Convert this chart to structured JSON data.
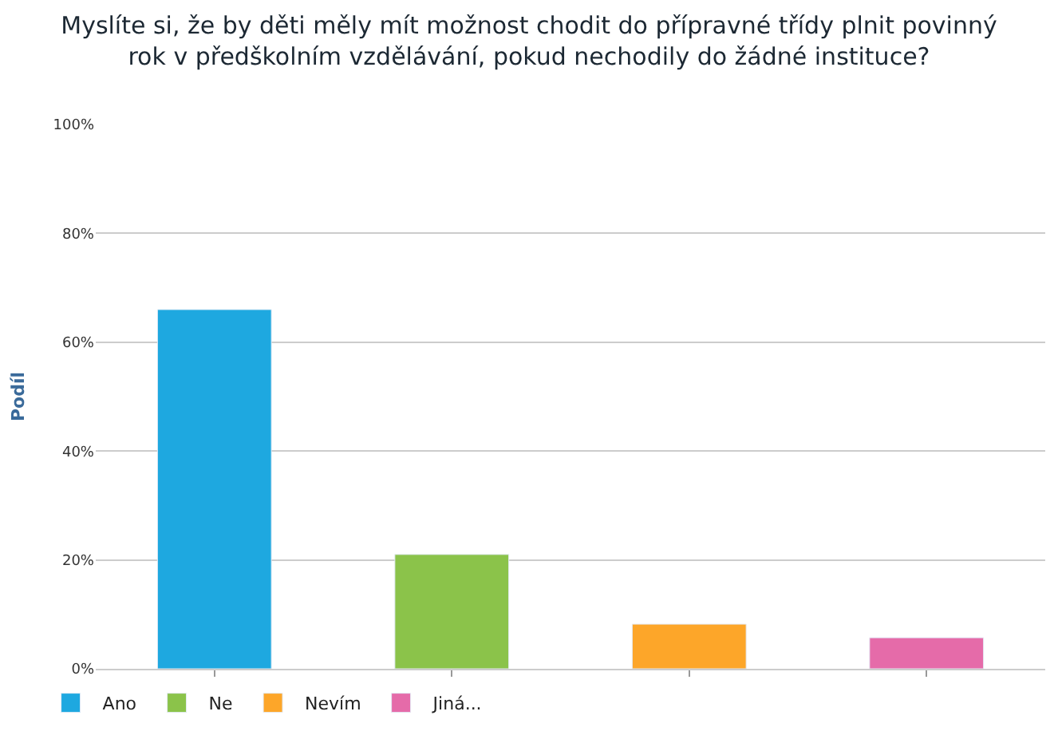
{
  "chart_data": {
    "type": "bar",
    "title": "Myslíte si, že by děti měly mít možnost chodit do přípravné třídy plnit povinný rok v předškolním vzdělávání, pokud nechodily do žádné instituce?",
    "ylabel": "Podíl",
    "categories": [
      null,
      null,
      null,
      null
    ],
    "series": [
      {
        "name": "Ano",
        "color": "#1ea8e0",
        "values": [
          66,
          null,
          null,
          null
        ]
      },
      {
        "name": "Ne",
        "color": "#8bc34a",
        "values": [
          null,
          21,
          null,
          null
        ]
      },
      {
        "name": "Nevím",
        "color": "#fda629",
        "values": [
          null,
          null,
          8.2,
          null
        ]
      },
      {
        "name": "Jiná...",
        "color": "#e56ba9",
        "values": [
          null,
          null,
          null,
          5.7
        ]
      }
    ],
    "ylim": [
      0,
      100
    ],
    "yticks": [
      {
        "value": 0,
        "label": "0%"
      },
      {
        "value": 20,
        "label": "20%"
      },
      {
        "value": 40,
        "label": "40%"
      },
      {
        "value": 60,
        "label": "60%"
      },
      {
        "value": 80,
        "label": "80%"
      },
      {
        "value": 100,
        "label": "100%"
      }
    ],
    "grid": "y",
    "legend": "bottom",
    "tick_labels": "y"
  }
}
